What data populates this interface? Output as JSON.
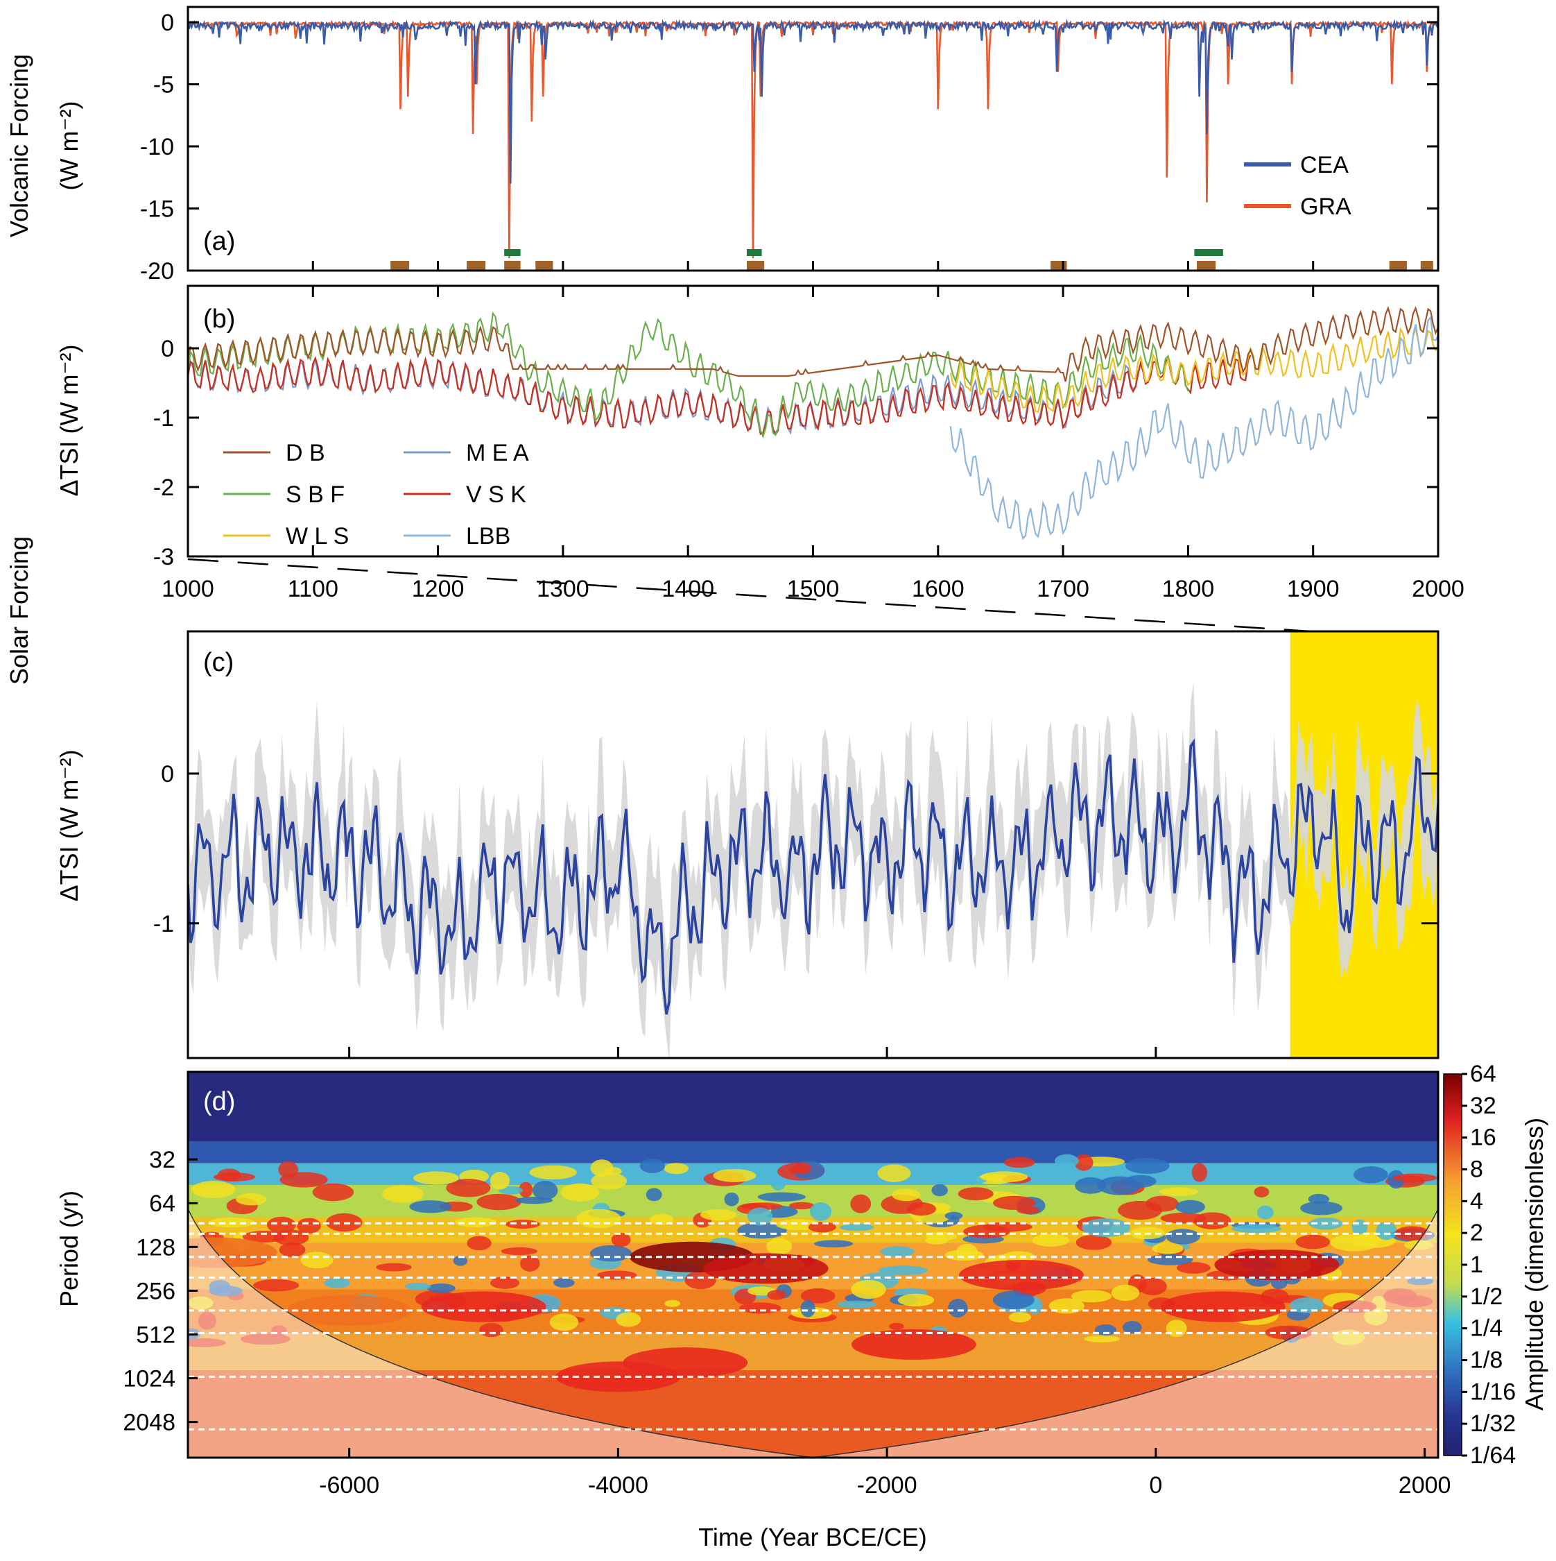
{
  "figure_labels": {
    "volcanic_group": "Volcanic Forcing",
    "solar_group": "Solar Forcing",
    "time_label": "Time (Year BCE/CE)"
  },
  "chart_data": [
    {
      "id": "a",
      "type": "line",
      "panel_label": "(a)",
      "xlim": [
        1000,
        2000
      ],
      "ylim": [
        -20,
        0
      ],
      "ylabel": "(W m⁻²)",
      "yticks": [
        0,
        -5,
        -10,
        -15,
        -20
      ],
      "legend": {
        "placement": "bottom-right",
        "entries": [
          "CEA",
          "GRA"
        ]
      },
      "colors": {
        "CEA": "#3a5ca8",
        "GRA": "#e8582a",
        "brown_bar": "#a0642a",
        "green_bar": "#1e7a3a"
      },
      "series": [
        {
          "name": "GRA",
          "events": [
            [
              1170,
              -7
            ],
            [
              1176,
              -6
            ],
            [
              1228,
              -9
            ],
            [
              1231,
              -5
            ],
            [
              1257,
              -19
            ],
            [
              1275,
              -8
            ],
            [
              1284,
              -6
            ],
            [
              1452,
              -19
            ],
            [
              1458,
              -6
            ],
            [
              1600,
              -7
            ],
            [
              1640,
              -7
            ],
            [
              1696,
              -4
            ],
            [
              1783,
              -12.5
            ],
            [
              1815,
              -14.5
            ],
            [
              1832,
              -5
            ],
            [
              1883,
              -5
            ],
            [
              1963,
              -5
            ],
            [
              1991,
              -4
            ]
          ]
        },
        {
          "name": "CEA",
          "events": [
            [
              1230,
              -5
            ],
            [
              1258,
              -13
            ],
            [
              1286,
              -3
            ],
            [
              1453,
              -4
            ],
            [
              1459,
              -6
            ],
            [
              1695,
              -4
            ],
            [
              1809,
              -6
            ],
            [
              1815,
              -9
            ],
            [
              1835,
              -3
            ],
            [
              1883,
              -4
            ],
            [
              1991,
              -3.5
            ]
          ]
        }
      ],
      "brown_bars": [
        [
          1162,
          1177
        ],
        [
          1223,
          1238
        ],
        [
          1253,
          1266
        ],
        [
          1278,
          1292
        ],
        [
          1447,
          1461
        ],
        [
          1690,
          1703
        ],
        [
          1807,
          1822
        ],
        [
          1961,
          1975
        ],
        [
          1986,
          1996
        ]
      ],
      "green_bars": [
        [
          1253,
          1266
        ],
        [
          1447,
          1459
        ],
        [
          1805,
          1828
        ]
      ]
    },
    {
      "id": "b",
      "type": "line",
      "panel_label": "(b)",
      "xlim": [
        1000,
        2000
      ],
      "ylim": [
        -3,
        0.9
      ],
      "ylabel": "ΔTSI (W m⁻²)",
      "yticks": [
        0,
        -1,
        -2,
        -3
      ],
      "xticks": [
        1000,
        1100,
        1200,
        1300,
        1400,
        1500,
        1600,
        1700,
        1800,
        1900,
        2000
      ],
      "series": [
        {
          "name": "D B",
          "color": "#a0542a",
          "range": [
            1000,
            2000
          ],
          "knots": [
            [
              1000,
              -0.15
            ],
            [
              1050,
              -0.05
            ],
            [
              1100,
              0.05
            ],
            [
              1150,
              0.1
            ],
            [
              1200,
              0.05
            ],
            [
              1250,
              0.15
            ],
            [
              1260,
              -0.3
            ],
            [
              1420,
              -0.3
            ],
            [
              1440,
              -0.4
            ],
            [
              1480,
              -0.4
            ],
            [
              1520,
              -0.3
            ],
            [
              1600,
              -0.1
            ],
            [
              1640,
              -0.3
            ],
            [
              1700,
              -0.35
            ],
            [
              1720,
              0.0
            ],
            [
              1780,
              0.2
            ],
            [
              1820,
              0.0
            ],
            [
              1850,
              -0.2
            ],
            [
              1880,
              0.1
            ],
            [
              1920,
              0.3
            ],
            [
              1960,
              0.4
            ],
            [
              2000,
              0.4
            ]
          ]
        },
        {
          "name": "S B F",
          "color": "#6ab04c",
          "range": [
            1000,
            1800
          ],
          "knots": [
            [
              1000,
              -0.3
            ],
            [
              1050,
              -0.1
            ],
            [
              1100,
              0.0
            ],
            [
              1150,
              0.1
            ],
            [
              1200,
              0.1
            ],
            [
              1250,
              0.3
            ],
            [
              1280,
              -0.5
            ],
            [
              1330,
              -0.9
            ],
            [
              1370,
              0.3
            ],
            [
              1400,
              -0.2
            ],
            [
              1430,
              -0.5
            ],
            [
              1465,
              -1.2
            ],
            [
              1490,
              -0.6
            ],
            [
              1520,
              -0.8
            ],
            [
              1560,
              -0.5
            ],
            [
              1600,
              -0.2
            ],
            [
              1640,
              -0.5
            ],
            [
              1700,
              -0.7
            ],
            [
              1720,
              -0.3
            ],
            [
              1760,
              0.0
            ],
            [
              1800,
              -0.5
            ]
          ]
        },
        {
          "name": "W L S",
          "color": "#f0c020",
          "range": [
            1610,
            2000
          ],
          "knots": [
            [
              1610,
              -0.4
            ],
            [
              1650,
              -0.6
            ],
            [
              1680,
              -0.8
            ],
            [
              1710,
              -0.7
            ],
            [
              1730,
              -0.4
            ],
            [
              1760,
              -0.3
            ],
            [
              1800,
              -0.4
            ],
            [
              1850,
              -0.2
            ],
            [
              1900,
              -0.3
            ],
            [
              1950,
              0.0
            ],
            [
              2000,
              0.1
            ]
          ]
        },
        {
          "name": "M E A",
          "color": "#7a9bd0",
          "range": [
            1000,
            1760
          ],
          "knots": [
            [
              1000,
              -0.4
            ],
            [
              1050,
              -0.5
            ],
            [
              1100,
              -0.4
            ],
            [
              1150,
              -0.5
            ],
            [
              1200,
              -0.4
            ],
            [
              1260,
              -0.6
            ],
            [
              1300,
              -0.9
            ],
            [
              1350,
              -1.0
            ],
            [
              1400,
              -0.8
            ],
            [
              1460,
              -1.1
            ],
            [
              1500,
              -1.0
            ],
            [
              1550,
              -0.9
            ],
            [
              1600,
              -0.6
            ],
            [
              1650,
              -0.8
            ],
            [
              1700,
              -1.0
            ],
            [
              1730,
              -0.6
            ],
            [
              1760,
              -0.4
            ]
          ]
        },
        {
          "name": "V S K",
          "color": "#c8301e",
          "range": [
            1000,
            1850
          ],
          "knots": [
            [
              1000,
              -0.4
            ],
            [
              1050,
              -0.5
            ],
            [
              1100,
              -0.35
            ],
            [
              1150,
              -0.5
            ],
            [
              1200,
              -0.35
            ],
            [
              1260,
              -0.6
            ],
            [
              1300,
              -0.9
            ],
            [
              1350,
              -1.0
            ],
            [
              1400,
              -0.8
            ],
            [
              1460,
              -1.1
            ],
            [
              1500,
              -1.0
            ],
            [
              1550,
              -0.95
            ],
            [
              1600,
              -0.7
            ],
            [
              1650,
              -0.9
            ],
            [
              1700,
              -1.0
            ],
            [
              1730,
              -0.7
            ],
            [
              1780,
              -0.3
            ],
            [
              1800,
              -0.5
            ],
            [
              1850,
              -0.3
            ]
          ]
        },
        {
          "name": "LBB",
          "color": "#8fb6dc",
          "range": [
            1610,
            2000
          ],
          "knots": [
            [
              1610,
              -1.2
            ],
            [
              1630,
              -1.8
            ],
            [
              1650,
              -2.4
            ],
            [
              1670,
              -2.55
            ],
            [
              1700,
              -2.5
            ],
            [
              1720,
              -2.0
            ],
            [
              1760,
              -1.5
            ],
            [
              1780,
              -1.0
            ],
            [
              1810,
              -1.7
            ],
            [
              1840,
              -1.4
            ],
            [
              1870,
              -1.0
            ],
            [
              1900,
              -1.3
            ],
            [
              1930,
              -0.8
            ],
            [
              1950,
              -0.4
            ],
            [
              1980,
              0.0
            ],
            [
              2000,
              0.3
            ]
          ]
        }
      ]
    },
    {
      "id": "c",
      "type": "area",
      "panel_label": "(c)",
      "xlim": [
        -7200,
        2100
      ],
      "ylim": [
        -1.9,
        0.95
      ],
      "ylabel": "ΔTSI (W m⁻²)",
      "yticks": [
        0,
        -1
      ],
      "xticks": [
        -6000,
        -4000,
        -2000,
        0
      ],
      "highlight_range": [
        1000,
        2000
      ],
      "colors": {
        "mean": "#2b44a0",
        "band": "#d7d7d7",
        "highlight": "#fde400"
      },
      "series": [
        {
          "name": "",
          "knots": [
            [
              -7200,
              -0.7
            ],
            [
              -6800,
              -0.6
            ],
            [
              -6500,
              -0.5
            ],
            [
              -6200,
              -0.6
            ],
            [
              -6000,
              -0.55
            ],
            [
              -5600,
              -0.8
            ],
            [
              -5200,
              -1.1
            ],
            [
              -4900,
              -0.7
            ],
            [
              -4400,
              -0.9
            ],
            [
              -4000,
              -0.6
            ],
            [
              -3700,
              -1.3
            ],
            [
              -3400,
              -0.8
            ],
            [
              -3000,
              -0.5
            ],
            [
              -2700,
              -0.7
            ],
            [
              -2400,
              -0.45
            ],
            [
              -2000,
              -0.6
            ],
            [
              -1800,
              -0.4
            ],
            [
              -1500,
              -0.55
            ],
            [
              -1000,
              -0.6
            ],
            [
              -700,
              -0.4
            ],
            [
              -300,
              -0.3
            ],
            [
              0,
              -0.5
            ],
            [
              300,
              -0.25
            ],
            [
              700,
              -0.9
            ],
            [
              1000,
              -0.5
            ],
            [
              1200,
              -0.3
            ],
            [
              1400,
              -0.8
            ],
            [
              1600,
              -0.4
            ],
            [
              1800,
              -0.6
            ],
            [
              2000,
              -0.2
            ]
          ]
        }
      ]
    },
    {
      "id": "d",
      "type": "heatmap",
      "panel_label": "(d)",
      "xlim": [
        -7200,
        2100
      ],
      "xticks": [
        -6000,
        -4000,
        -2000,
        0,
        2000
      ],
      "xlabel": "Time (Year BCE/CE)",
      "ylabel": "Period (yr)",
      "period_ticks": [
        "32",
        "64",
        "128",
        "256",
        "512",
        "1024",
        "2048"
      ],
      "reference_periods": [
        88,
        104,
        150,
        208,
        350,
        500,
        1000,
        2300
      ],
      "colorbar": {
        "label": "Amplitude (dimensionless)",
        "ticks": [
          "64",
          "32",
          "16",
          "8",
          "4",
          "2",
          "1",
          "1/2",
          "1/4",
          "1/8",
          "1/16",
          "1/32",
          "1/64"
        ]
      },
      "hotspots": [
        [
          -3450,
          150,
          64
        ],
        [
          -2900,
          180,
          32
        ],
        [
          -5000,
          330,
          16
        ],
        [
          -3500,
          800,
          16
        ],
        [
          -1800,
          600,
          16
        ],
        [
          -1000,
          200,
          16
        ],
        [
          900,
          170,
          32
        ],
        [
          -7000,
          140,
          8
        ],
        [
          -4000,
          1000,
          16
        ],
        [
          -6000,
          350,
          8
        ],
        [
          500,
          330,
          16
        ]
      ]
    }
  ]
}
